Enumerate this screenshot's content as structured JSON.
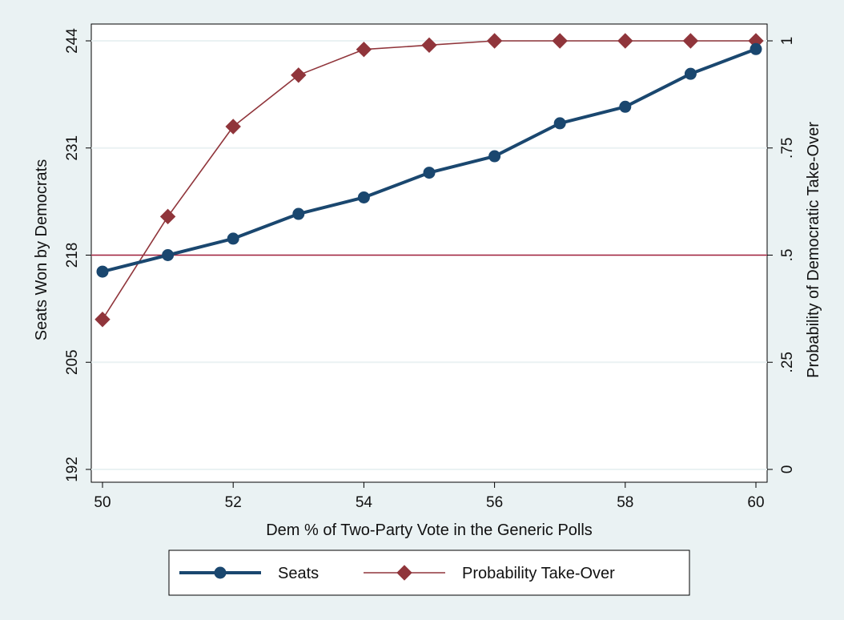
{
  "chart_data": {
    "type": "line",
    "xlabel": "Dem % of Two-Party Vote in the Generic Polls",
    "ylabel_left": "Seats Won by Democrats",
    "ylabel_right": "Probability of Democratic Take-Over",
    "x": [
      50,
      51,
      52,
      53,
      54,
      55,
      56,
      57,
      58,
      59,
      60
    ],
    "xticks": [
      50,
      52,
      54,
      56,
      58,
      60
    ],
    "xlim": [
      50,
      60
    ],
    "ylim_left": [
      192,
      244
    ],
    "yticks_left": [
      192,
      205,
      218,
      231,
      244
    ],
    "ylim_right": [
      0,
      1
    ],
    "yticks_right": [
      0,
      0.25,
      0.5,
      0.75,
      1
    ],
    "yticks_right_labels": [
      "0",
      ".25",
      ".5",
      ".75",
      "1"
    ],
    "reference_line": {
      "axis": "left",
      "value": 218,
      "color": "#a31f3c"
    },
    "grid": true,
    "legend_position": "bottom",
    "series": [
      {
        "name": "Seats",
        "axis": "left",
        "color": "#1a476f",
        "marker": "circle",
        "values": [
          216,
          218,
          220,
          223,
          225,
          228,
          230,
          234,
          236,
          240,
          243
        ]
      },
      {
        "name": "Probability Take-Over",
        "axis": "right",
        "color": "#90353b",
        "marker": "diamond",
        "values": [
          0.35,
          0.59,
          0.8,
          0.92,
          0.98,
          0.99,
          1.0,
          1.0,
          1.0,
          1.0,
          1.0
        ]
      }
    ]
  }
}
